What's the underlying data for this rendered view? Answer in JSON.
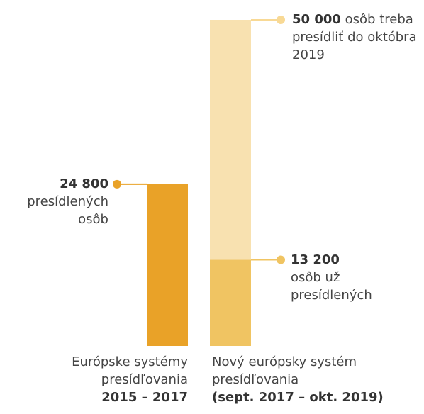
{
  "chart_data": {
    "type": "bar",
    "categories": [
      "Európske systémy presídľovania",
      "Nový európsky systém presídľovania"
    ],
    "periods": [
      "2015 – 2017",
      "(sept. 2017 – okt. 2019)"
    ],
    "values": [
      24800,
      13200
    ],
    "value_labels": [
      "24 800",
      "13 200"
    ],
    "value_texts": [
      "presídlených osôb",
      "osôb už presídlených"
    ],
    "colors": [
      "#e9a228",
      "#f0c462"
    ],
    "target": {
      "value": 50000,
      "value_label": "50 000",
      "text": "osôb",
      "text2": "treba presídliť do októbra 2019",
      "color": "#f8e1b0",
      "dot_color": "#f8d995"
    },
    "ylim": [
      0,
      50000
    ]
  }
}
